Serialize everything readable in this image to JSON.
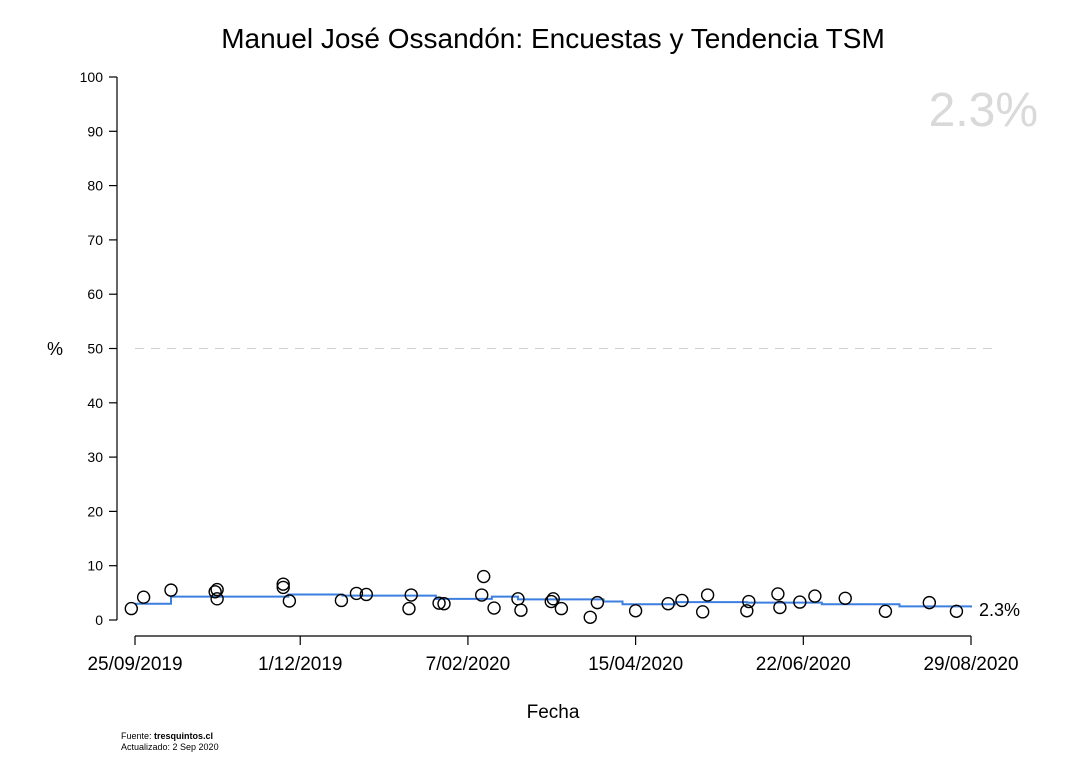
{
  "chart_data": {
    "type": "scatter",
    "title": "Manuel José Ossandón: Encuestas y Tendencia TSM",
    "xlabel": "Fecha",
    "ylabel": "%",
    "ylim": [
      0,
      100
    ],
    "yticks": [
      0,
      10,
      20,
      30,
      40,
      50,
      60,
      70,
      80,
      90,
      100
    ],
    "xlim_days": [
      0,
      339
    ],
    "x_ticks": [
      {
        "label": "25/09/2019",
        "day": 0
      },
      {
        "label": "1/12/2019",
        "day": 67
      },
      {
        "label": "7/02/2020",
        "day": 135
      },
      {
        "label": "15/04/2020",
        "day": 203
      },
      {
        "label": "22/06/2020",
        "day": 271
      },
      {
        "label": "29/08/2020",
        "day": 339
      }
    ],
    "reference_line": {
      "y": 50,
      "style": "dashed"
    },
    "current_value_label": "2.3%",
    "end_label": "2.3%",
    "line_color": "#3b7fe0",
    "point_color": "#000000",
    "watermark_color": "#d9d9d9",
    "polls": [
      {
        "day": -1.5,
        "value": 2.1
      },
      {
        "day": 3.5,
        "value": 4.2
      },
      {
        "day": 14.6,
        "value": 5.5
      },
      {
        "day": 32.5,
        "value": 5.2
      },
      {
        "day": 33.3,
        "value": 5.6
      },
      {
        "day": 33.3,
        "value": 3.9
      },
      {
        "day": 60.1,
        "value": 6.6
      },
      {
        "day": 60.1,
        "value": 6.0
      },
      {
        "day": 62.6,
        "value": 3.5
      },
      {
        "day": 83.7,
        "value": 3.6
      },
      {
        "day": 89.8,
        "value": 4.9
      },
      {
        "day": 93.8,
        "value": 4.7
      },
      {
        "day": 111.1,
        "value": 2.1
      },
      {
        "day": 112.0,
        "value": 4.6
      },
      {
        "day": 123.3,
        "value": 3.1
      },
      {
        "day": 125.3,
        "value": 3.0
      },
      {
        "day": 140.6,
        "value": 4.6
      },
      {
        "day": 141.4,
        "value": 8.0
      },
      {
        "day": 145.6,
        "value": 2.2
      },
      {
        "day": 155.3,
        "value": 3.9
      },
      {
        "day": 156.5,
        "value": 1.8
      },
      {
        "day": 168.8,
        "value": 3.4
      },
      {
        "day": 169.6,
        "value": 3.9
      },
      {
        "day": 172.9,
        "value": 2.1
      },
      {
        "day": 184.6,
        "value": 0.5
      },
      {
        "day": 187.5,
        "value": 3.2
      },
      {
        "day": 203.0,
        "value": 1.7
      },
      {
        "day": 216.2,
        "value": 3.0
      },
      {
        "day": 221.8,
        "value": 3.6
      },
      {
        "day": 230.2,
        "value": 1.5
      },
      {
        "day": 232.2,
        "value": 4.6
      },
      {
        "day": 248.1,
        "value": 1.7
      },
      {
        "day": 248.9,
        "value": 3.4
      },
      {
        "day": 260.7,
        "value": 4.8
      },
      {
        "day": 261.5,
        "value": 2.3
      },
      {
        "day": 269.6,
        "value": 3.3
      },
      {
        "day": 275.7,
        "value": 4.4
      },
      {
        "day": 288.0,
        "value": 4.0
      },
      {
        "day": 304.3,
        "value": 1.6
      },
      {
        "day": 322.1,
        "value": 3.2
      },
      {
        "day": 333.1,
        "value": 1.6
      }
    ],
    "trend_steps": [
      {
        "day": 0,
        "value": 3.0
      },
      {
        "day": 14.6,
        "value": 4.3
      },
      {
        "day": 62.2,
        "value": 4.7
      },
      {
        "day": 84.1,
        "value": 4.5
      },
      {
        "day": 122.0,
        "value": 3.9
      },
      {
        "day": 144.7,
        "value": 4.3
      },
      {
        "day": 155.3,
        "value": 3.8
      },
      {
        "day": 190.0,
        "value": 3.4
      },
      {
        "day": 197.7,
        "value": 2.9
      },
      {
        "day": 219.0,
        "value": 3.3
      },
      {
        "day": 248.1,
        "value": 3.2
      },
      {
        "day": 278.5,
        "value": 2.9
      },
      {
        "day": 310.0,
        "value": 2.5
      },
      {
        "day": 339,
        "value": 2.3
      }
    ]
  },
  "footer": {
    "source_prefix": "Fuente: ",
    "source_name": "tresquintos.cl",
    "updated": "Actualizado: 2 Sep 2020"
  }
}
